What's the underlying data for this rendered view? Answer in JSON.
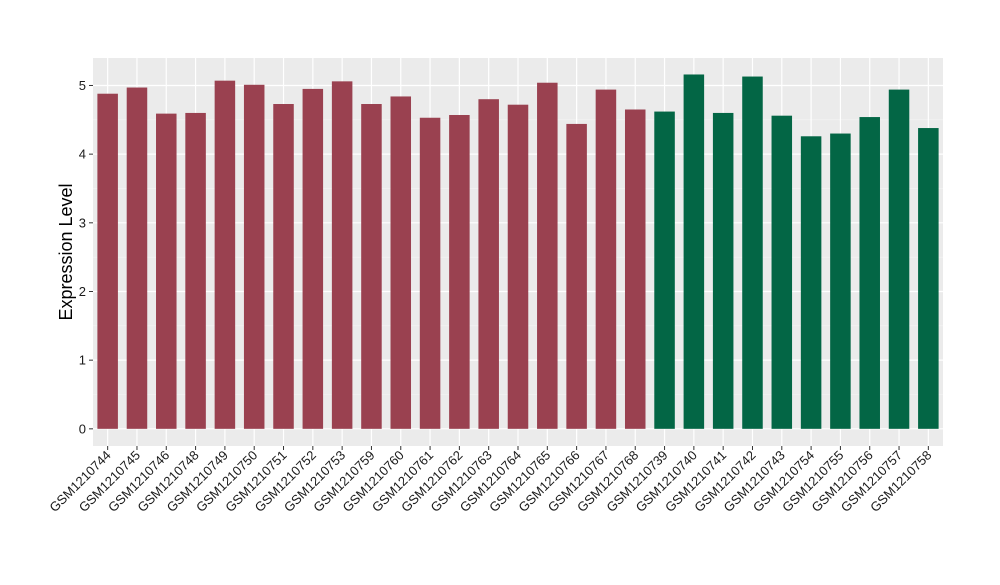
{
  "chart_data": {
    "type": "bar",
    "title": "",
    "xlabel": "",
    "ylabel": "Expression Level",
    "ylim": [
      0,
      5.4
    ],
    "yticks": [
      0,
      1,
      2,
      3,
      4,
      5
    ],
    "grid": true,
    "categories": [
      "GSM1210744",
      "GSM1210745",
      "GSM1210746",
      "GSM1210748",
      "GSM1210749",
      "GSM1210750",
      "GSM1210751",
      "GSM1210752",
      "GSM1210753",
      "GSM1210759",
      "GSM1210760",
      "GSM1210761",
      "GSM1210762",
      "GSM1210763",
      "GSM1210764",
      "GSM1210765",
      "GSM1210766",
      "GSM1210767",
      "GSM1210768",
      "GSM1210739",
      "GSM1210740",
      "GSM1210741",
      "GSM1210742",
      "GSM1210743",
      "GSM1210754",
      "GSM1210755",
      "GSM1210756",
      "GSM1210757",
      "GSM1210758"
    ],
    "values": [
      4.88,
      4.97,
      4.59,
      4.6,
      5.07,
      5.01,
      4.73,
      4.95,
      5.06,
      4.73,
      4.84,
      4.53,
      4.57,
      4.8,
      4.72,
      5.04,
      4.44,
      4.94,
      4.65,
      4.62,
      5.16,
      4.6,
      5.13,
      4.56,
      4.26,
      4.3,
      4.54,
      4.94,
      4.38
    ],
    "groups": [
      "a",
      "a",
      "a",
      "a",
      "a",
      "a",
      "a",
      "a",
      "a",
      "a",
      "a",
      "a",
      "a",
      "a",
      "a",
      "a",
      "a",
      "a",
      "a",
      "b",
      "b",
      "b",
      "b",
      "b",
      "b",
      "b",
      "b",
      "b",
      "b"
    ],
    "colors": {
      "a": "#9a4150",
      "b": "#036645",
      "panel_bg": "#ebebeb",
      "grid_major": "#ffffff",
      "grid_minor": "#f5f5f5",
      "text": "#1a1a1a"
    }
  }
}
